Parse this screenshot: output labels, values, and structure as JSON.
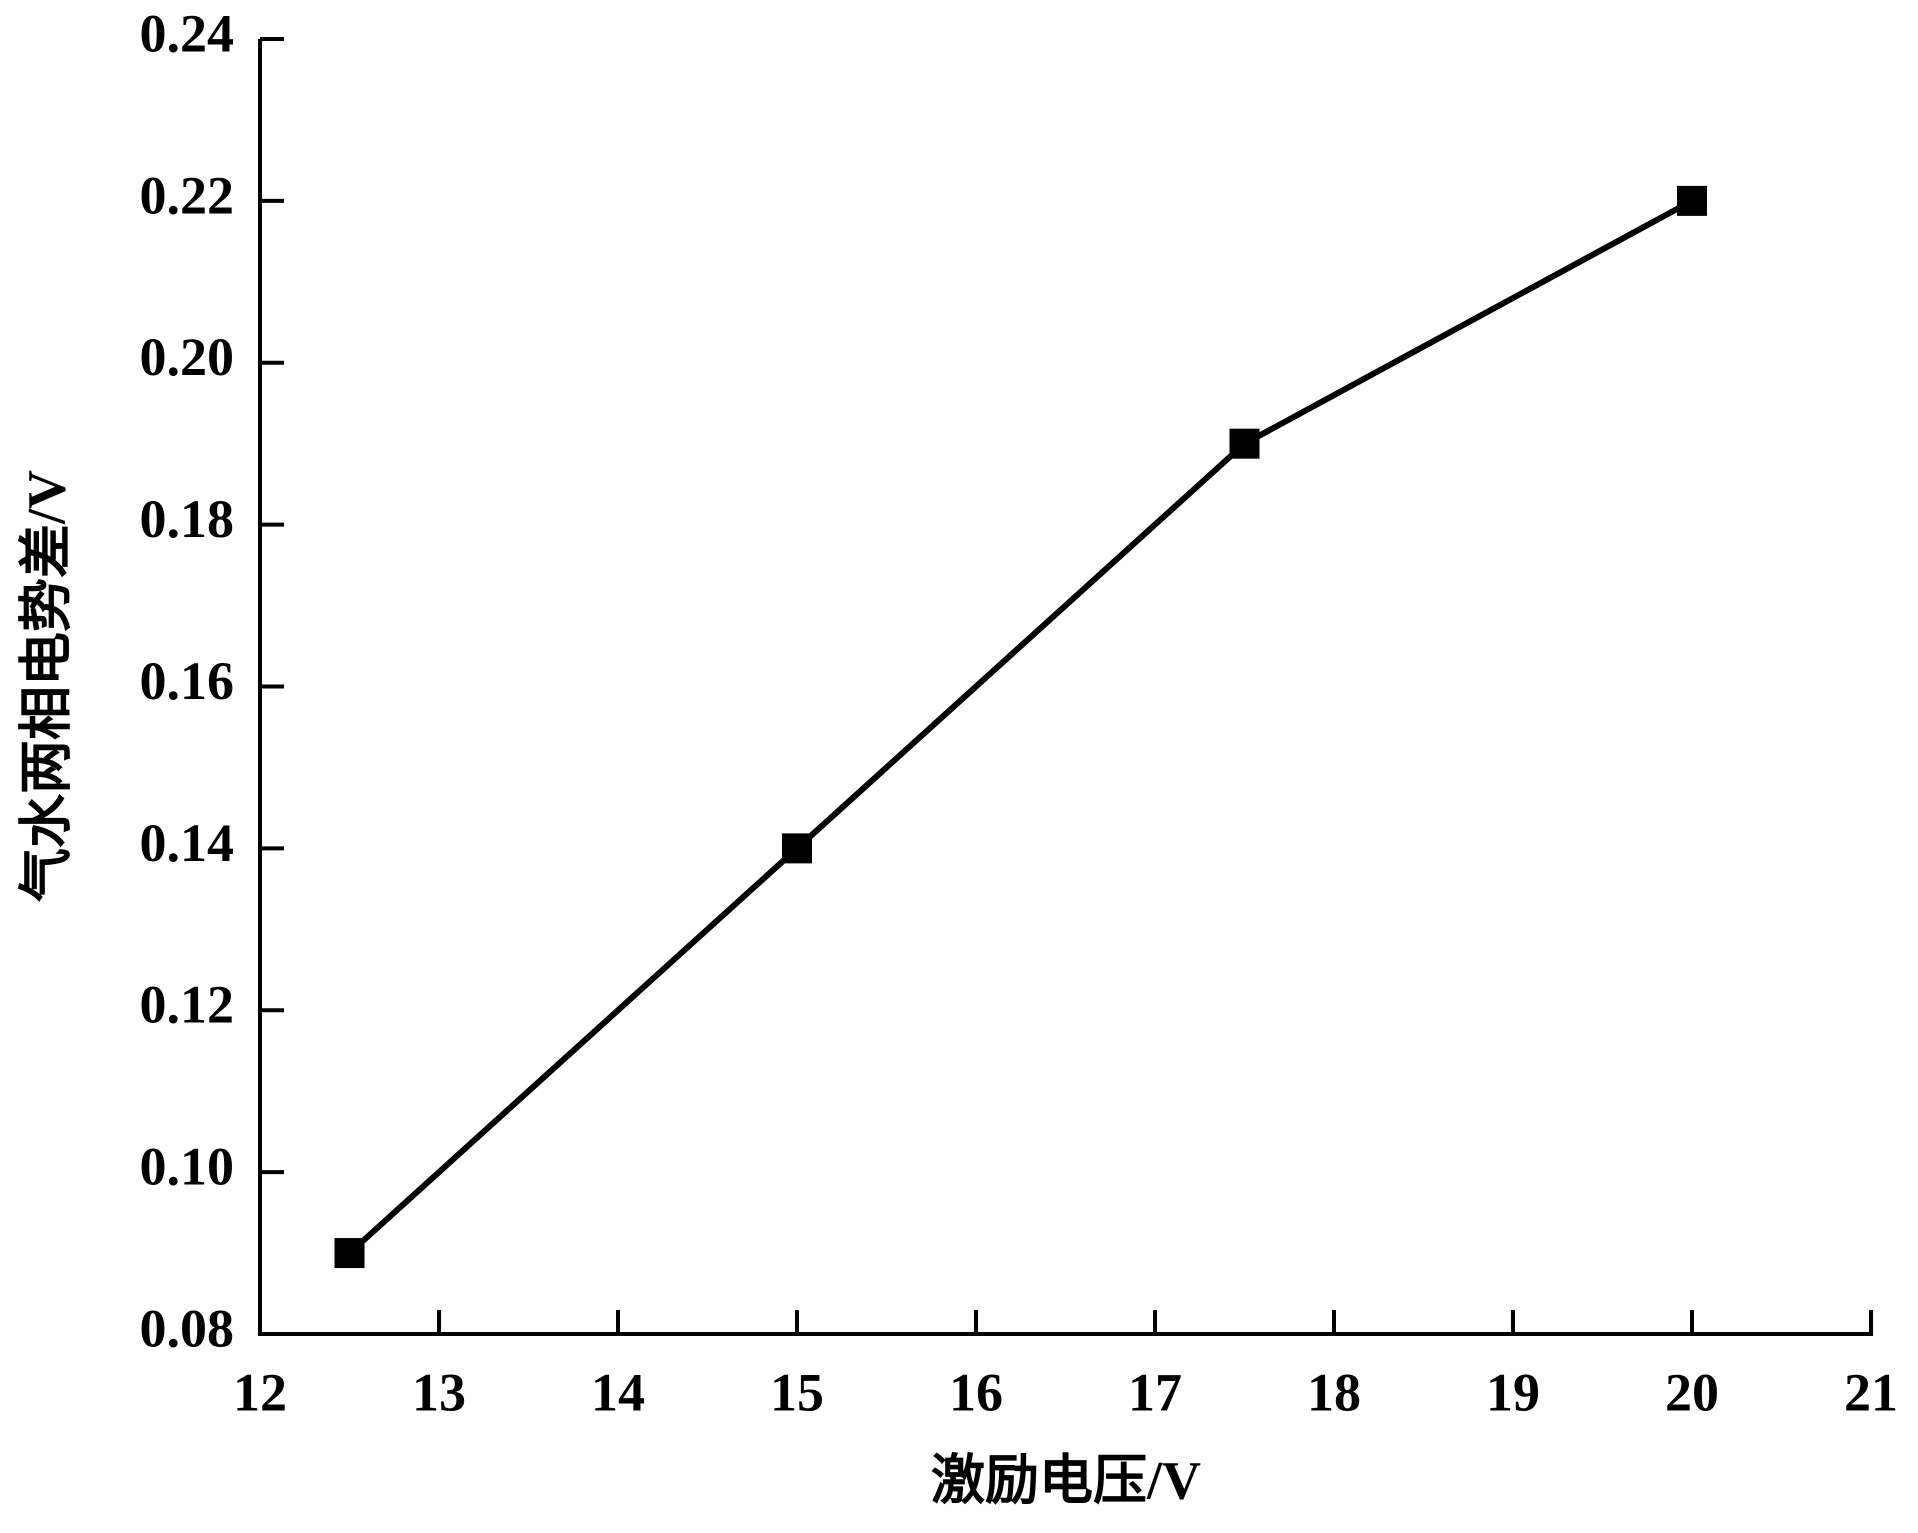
{
  "chart_data": {
    "type": "line",
    "xlabel": "激励电压/V",
    "ylabel": "气水两相电势差/V",
    "x": [
      12.5,
      15,
      17.5,
      20
    ],
    "series": [
      {
        "color": "#000000",
        "values": [
          0.09,
          0.14,
          0.19,
          0.22
        ]
      }
    ],
    "xlim": [
      12,
      21
    ],
    "xticks": [
      12,
      13,
      14,
      15,
      16,
      17,
      18,
      19,
      20,
      21
    ],
    "ylim": [
      0.08,
      0.24
    ],
    "yticks": [
      0.08,
      {
        "value": 0.1,
        "label": "0.10"
      },
      0.12,
      0.14,
      0.16,
      0.18,
      {
        "value": 0.2,
        "label": "0.20"
      },
      0.22,
      0.24
    ],
    "marker": "square"
  }
}
